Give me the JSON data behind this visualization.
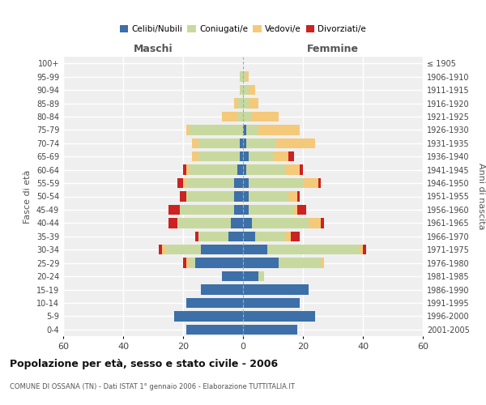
{
  "age_groups": [
    "0-4",
    "5-9",
    "10-14",
    "15-19",
    "20-24",
    "25-29",
    "30-34",
    "35-39",
    "40-44",
    "45-49",
    "50-54",
    "55-59",
    "60-64",
    "65-69",
    "70-74",
    "75-79",
    "80-84",
    "85-89",
    "90-94",
    "95-99",
    "100+"
  ],
  "birth_years": [
    "2001-2005",
    "1996-2000",
    "1991-1995",
    "1986-1990",
    "1981-1985",
    "1976-1980",
    "1971-1975",
    "1966-1970",
    "1961-1965",
    "1956-1960",
    "1951-1955",
    "1946-1950",
    "1941-1945",
    "1936-1940",
    "1931-1935",
    "1926-1930",
    "1921-1925",
    "1916-1920",
    "1911-1915",
    "1906-1910",
    "≤ 1905"
  ],
  "male": {
    "celibi": [
      19,
      23,
      19,
      14,
      7,
      16,
      14,
      5,
      4,
      3,
      3,
      3,
      2,
      1,
      1,
      0,
      0,
      0,
      0,
      0,
      0
    ],
    "coniugati": [
      0,
      0,
      0,
      0,
      0,
      2,
      12,
      10,
      18,
      18,
      16,
      16,
      16,
      14,
      14,
      18,
      2,
      2,
      1,
      1,
      0
    ],
    "vedovi": [
      0,
      0,
      0,
      0,
      0,
      1,
      1,
      0,
      0,
      0,
      0,
      1,
      1,
      2,
      2,
      1,
      5,
      1,
      0,
      0,
      0
    ],
    "divorziati": [
      0,
      0,
      0,
      0,
      0,
      1,
      1,
      1,
      3,
      4,
      2,
      2,
      1,
      0,
      0,
      0,
      0,
      0,
      0,
      0,
      0
    ]
  },
  "female": {
    "nubili": [
      18,
      24,
      19,
      22,
      5,
      12,
      8,
      4,
      3,
      2,
      2,
      2,
      1,
      2,
      1,
      1,
      0,
      0,
      0,
      0,
      0
    ],
    "coniugate": [
      0,
      0,
      0,
      0,
      2,
      14,
      31,
      10,
      19,
      15,
      13,
      18,
      13,
      8,
      10,
      4,
      3,
      2,
      2,
      1,
      0
    ],
    "vedove": [
      0,
      0,
      0,
      0,
      0,
      1,
      1,
      2,
      4,
      1,
      3,
      5,
      5,
      5,
      13,
      14,
      9,
      3,
      2,
      1,
      0
    ],
    "divorziate": [
      0,
      0,
      0,
      0,
      0,
      0,
      1,
      3,
      1,
      3,
      1,
      1,
      1,
      2,
      0,
      0,
      0,
      0,
      0,
      0,
      0
    ]
  },
  "colors": {
    "celibi": "#3d6fa8",
    "coniugati": "#c8d9a0",
    "vedovi": "#f5c97a",
    "divorziati": "#cc2222"
  },
  "xlim": 60,
  "title": "Popolazione per età, sesso e stato civile - 2006",
  "subtitle": "COMUNE DI OSSANA (TN) - Dati ISTAT 1° gennaio 2006 - Elaborazione TUTTITALIA.IT",
  "xlabel_left": "Maschi",
  "xlabel_right": "Femmine",
  "ylabel_left": "Fasce di età",
  "ylabel_right": "Anni di nascita",
  "legend_labels": [
    "Celibi/Nubili",
    "Coniugati/e",
    "Vedovi/e",
    "Divorziati/e"
  ],
  "background_color": "#ffffff",
  "bar_height": 0.75
}
